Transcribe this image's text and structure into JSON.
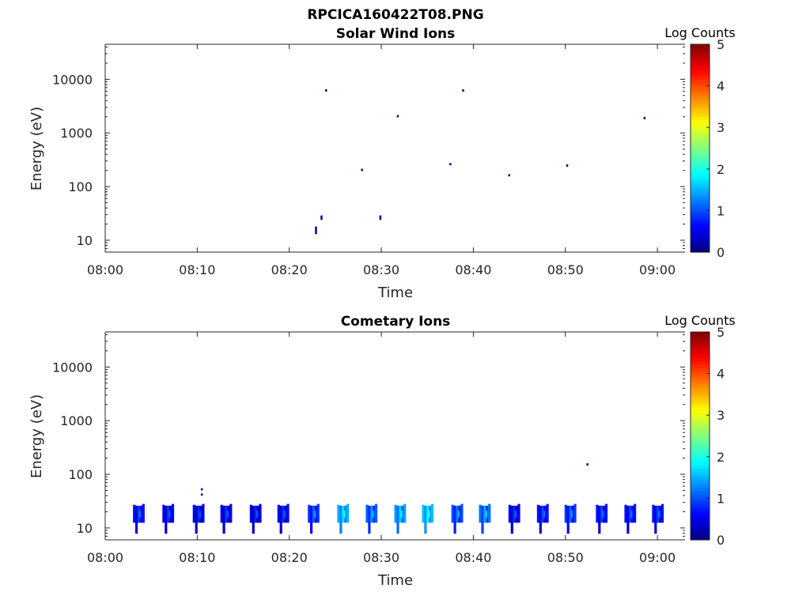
{
  "figure_title": "RPCICA160422T08.PNG",
  "chart_data": [
    {
      "type": "heatmap",
      "title": "Solar Wind Ions",
      "xlabel": "Time",
      "ylabel": "Energy (eV)",
      "x_ticks": [
        "08:00",
        "08:10",
        "08:20",
        "08:30",
        "08:40",
        "08:50",
        "09:00"
      ],
      "xlim_minutes": [
        0,
        63
      ],
      "y_scale": "log",
      "ylim": [
        6,
        45000
      ],
      "y_ticks": [
        10,
        100,
        1000,
        10000
      ],
      "y_tick_labels": [
        "10",
        "100",
        "1000",
        "10000"
      ],
      "colorbar": {
        "label": "Log Counts",
        "range": [
          0,
          5
        ],
        "ticks": [
          "0",
          "1",
          "2",
          "3",
          "4",
          "5"
        ],
        "colormap": "jet"
      },
      "grid": false,
      "points": [
        {
          "t": 22.9,
          "e_lo": 13,
          "e_hi": 18,
          "v": 0.1
        },
        {
          "t": 23.5,
          "e_lo": 24,
          "e_hi": 29,
          "v": 0.2
        },
        {
          "t": 24.0,
          "e_lo": 5900,
          "e_hi": 6500,
          "v": 0.1
        },
        {
          "t": 27.9,
          "e_lo": 195,
          "e_hi": 215,
          "v": 0.1
        },
        {
          "t": 29.9,
          "e_lo": 24,
          "e_hi": 29,
          "v": 0.2
        },
        {
          "t": 31.8,
          "e_lo": 1950,
          "e_hi": 2150,
          "v": 0.1
        },
        {
          "t": 37.5,
          "e_lo": 250,
          "e_hi": 275,
          "v": 0.1
        },
        {
          "t": 38.9,
          "e_lo": 5900,
          "e_hi": 6500,
          "v": 0.1
        },
        {
          "t": 43.9,
          "e_lo": 155,
          "e_hi": 170,
          "v": 0.1
        },
        {
          "t": 50.2,
          "e_lo": 235,
          "e_hi": 260,
          "v": 0.1
        },
        {
          "t": 58.6,
          "e_lo": 1800,
          "e_hi": 2000,
          "v": 0.1
        }
      ]
    },
    {
      "type": "heatmap",
      "title": "Cometary Ions",
      "xlabel": "Time",
      "ylabel": "Energy (eV)",
      "x_ticks": [
        "08:00",
        "08:10",
        "08:20",
        "08:30",
        "08:40",
        "08:50",
        "09:00"
      ],
      "xlim_minutes": [
        0,
        63
      ],
      "y_scale": "log",
      "ylim": [
        6,
        45000
      ],
      "y_ticks": [
        10,
        100,
        1000,
        10000
      ],
      "y_tick_labels": [
        "10",
        "100",
        "1000",
        "10000"
      ],
      "colorbar": {
        "label": "Log Counts",
        "range": [
          0,
          5
        ],
        "ticks": [
          "0",
          "1",
          "2",
          "3",
          "4",
          "5"
        ],
        "colormap": "jet"
      },
      "grid": false,
      "bursts": [
        3.7,
        6.9,
        10.2,
        13.2,
        16.4,
        19.4,
        22.7,
        25.9,
        29.0,
        32.1,
        35.1,
        38.3,
        41.3,
        44.5,
        47.6,
        50.6,
        54.0,
        57.1,
        60.1
      ],
      "burst_values": [
        0.6,
        0.5,
        0.45,
        0.5,
        0.45,
        0.5,
        0.8,
        1.4,
        1.0,
        1.3,
        1.5,
        0.9,
        1.1,
        0.5,
        0.6,
        0.8,
        0.6,
        0.6,
        0.6
      ],
      "extra_points": [
        {
          "t": 10.5,
          "e_lo": 40,
          "e_hi": 44,
          "v": 0.4
        },
        {
          "t": 10.5,
          "e_lo": 50,
          "e_hi": 55,
          "v": 0.4
        },
        {
          "t": 52.4,
          "e_lo": 145,
          "e_hi": 160,
          "v": 0.2
        }
      ]
    }
  ]
}
